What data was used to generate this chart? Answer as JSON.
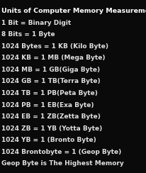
{
  "title": "Units of Computer Memory Measurements",
  "lines": [
    "1 Bit = Binary Digit",
    "8 Bits = 1 Byte",
    "1024 Bytes = 1 KB (Kilo Byte)",
    "1024 KB = 1 MB (Mega Byte)",
    "1024 MB = 1 GB(Giga Byte)",
    "1024 GB = 1 TB(Terra Byte)",
    "1024 TB = 1 PB(Peta Byte)",
    "1024 PB = 1 EB(Exa Byte)",
    "1024 EB = 1 ZB(Zetta Byte)",
    "1024 ZB = 1 YB (Yotta Byte)",
    "1024 YB = 1 (Bronto Byte)",
    "1024 Brontobyte = 1 (Geop Byte)",
    "Geop Byte is The Highest Memory"
  ],
  "bg_color": "#0a0a0a",
  "title_color": "#ffffff",
  "text_color": "#e0e0e0",
  "title_fontsize": 6.8,
  "line_fontsize": 6.5,
  "title_fontstyle": "bold",
  "line_fontstyle": "bold",
  "fig_width": 2.07,
  "fig_height": 2.44,
  "dpi": 100
}
